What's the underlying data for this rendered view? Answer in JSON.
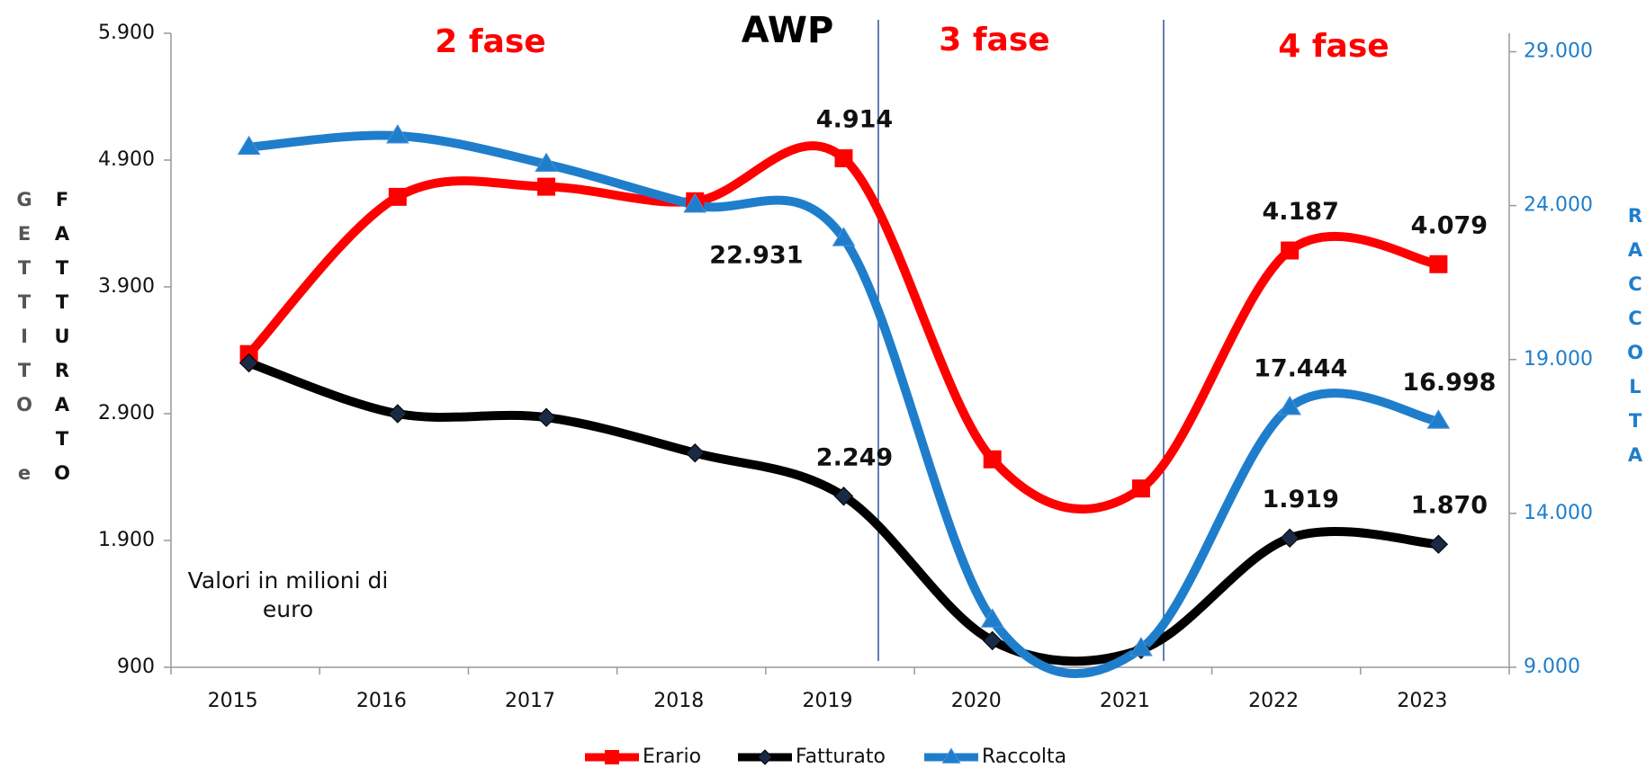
{
  "chart_data": {
    "type": "line",
    "title": "AWP",
    "annotations": [
      "2 fase",
      "3 fase",
      "4 fase"
    ],
    "note": "Valori in milioni di euro",
    "y_label": "GETTITO e",
    "y_label_2": "FATTURATO",
    "y2_label": "RACCOLTA",
    "categories": [
      "2015",
      "2016",
      "2017",
      "2018",
      "2019",
      "2020",
      "2021",
      "2022",
      "2023"
    ],
    "series": [
      {
        "name": "Erario",
        "color": "#ff0000",
        "marker": "square",
        "values": [
          3370,
          4610,
          4690,
          4575,
          4914,
          2540,
          2310,
          4187,
          4079
        ],
        "value_labels": [
          null,
          null,
          null,
          null,
          "4.914",
          null,
          null,
          "4.187",
          "4.079"
        ]
      },
      {
        "name": "Fatturato",
        "color": "#000000",
        "marker": "diamond",
        "values": [
          3300,
          2900,
          2870,
          2590,
          2249,
          1110,
          1040,
          1919,
          1870
        ],
        "value_labels": [
          null,
          null,
          null,
          null,
          "2.249",
          null,
          null,
          "1.919",
          "1.870"
        ]
      },
      {
        "name": "Raccolta",
        "color": "#1f7ecb",
        "marker": "triangle",
        "axis": "y2",
        "values": [
          25900,
          26270,
          25350,
          24020,
          22931,
          10540,
          9610,
          17444,
          16998
        ],
        "value_labels": [
          null,
          null,
          null,
          null,
          "22.931",
          null,
          null,
          "17.444",
          "16.998"
        ]
      }
    ],
    "ylim": [
      900,
      5900
    ],
    "yticks": [
      {
        "value": 900,
        "label": "900"
      },
      {
        "value": 1900,
        "label": "1.900"
      },
      {
        "value": 2900,
        "label": "2.900"
      },
      {
        "value": 3900,
        "label": "3.900"
      },
      {
        "value": 4900,
        "label": "4.900"
      },
      {
        "value": 5900,
        "label": "5.900"
      }
    ],
    "y2lim": [
      9000,
      29600
    ],
    "y2ticks": [
      {
        "value": 9000,
        "label": "9.000"
      },
      {
        "value": 14000,
        "label": "14.000"
      },
      {
        "value": 19000,
        "label": "19.000"
      },
      {
        "value": 24000,
        "label": "24.000"
      },
      {
        "value": 29000,
        "label": "29.000"
      }
    ],
    "grid": false,
    "legend": "bottom"
  }
}
